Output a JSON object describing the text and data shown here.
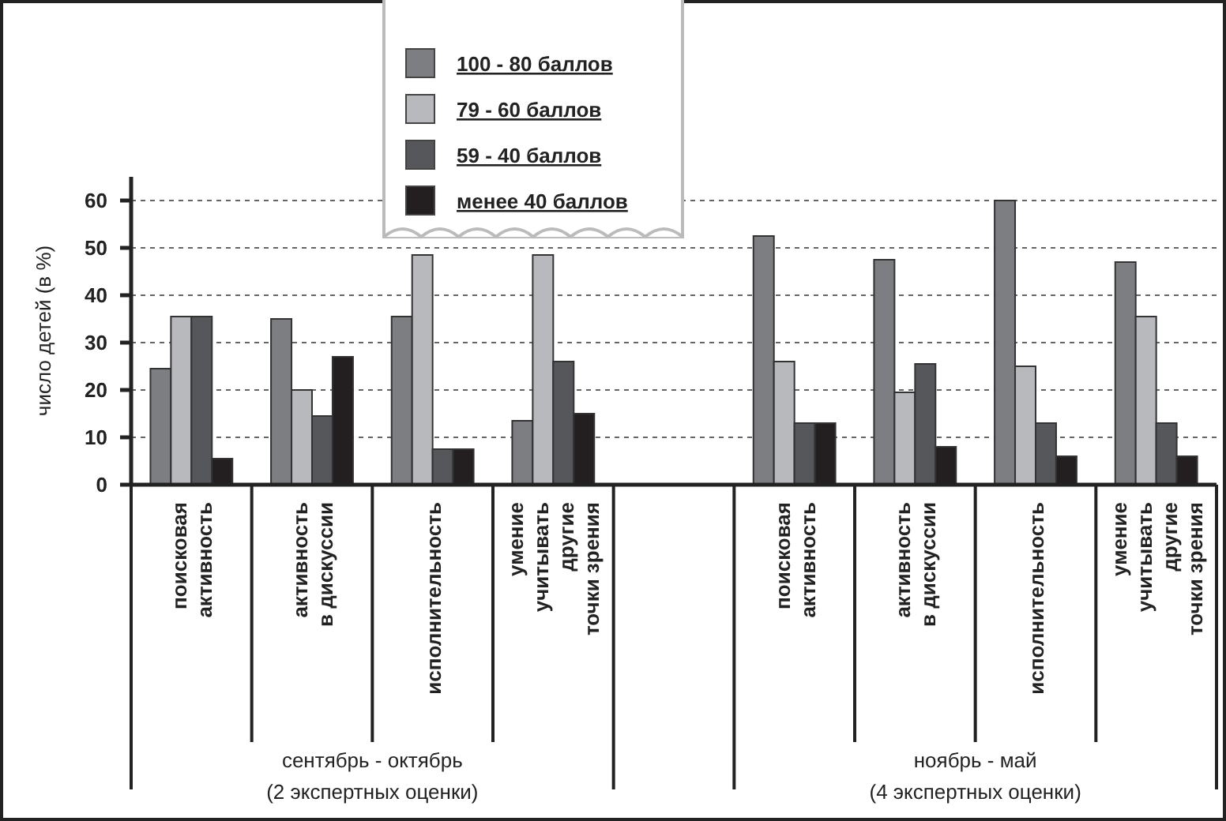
{
  "chart_data": {
    "type": "bar",
    "ylabel": "число детей (в %)",
    "categories": [
      "поисковая\nактивность",
      "активность\nв дискуссии",
      "исполнительность",
      "умение\nучитывать\nдругие\nточки зрения",
      null,
      "поисковая\nактивность",
      "активность\nв дискуссии",
      "исполнительность",
      "умение\nучитывать\nдругие\nточки зрения"
    ],
    "series": [
      {
        "name": "100 - 80 баллов",
        "color": "#7d7e82",
        "values": [
          24.5,
          35,
          35.5,
          13.5,
          null,
          52.5,
          47.5,
          60,
          47
        ]
      },
      {
        "name": "79 - 60 баллов",
        "color": "#b8b9bc",
        "values": [
          35.5,
          20,
          48.5,
          48.5,
          null,
          26,
          19.5,
          25,
          35.5
        ]
      },
      {
        "name": "59 - 40 баллов",
        "color": "#55575a",
        "values": [
          35.5,
          14.5,
          7.5,
          26,
          null,
          13,
          25.5,
          13,
          13
        ]
      },
      {
        "name": "менее 40 баллов",
        "color": "#231f20",
        "values": [
          5.5,
          27,
          7.5,
          15,
          null,
          13,
          8,
          6,
          6
        ]
      }
    ],
    "annotations": [
      "сентябрь - октябрь\n(2 экспертных оценки)",
      "ноябрь - май\n(4 экспертных оценки)"
    ],
    "ylim": [
      0,
      65
    ],
    "yticks": [
      0,
      10,
      20,
      30,
      40,
      50,
      60
    ],
    "grid": "y",
    "legend": "top"
  }
}
